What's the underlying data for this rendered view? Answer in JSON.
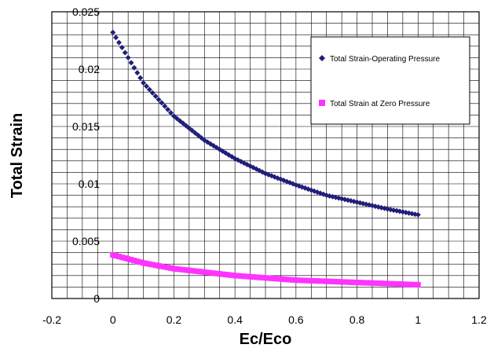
{
  "chart_data": {
    "type": "scatter",
    "xlabel": "Ec/Eco",
    "ylabel": "Total Strain",
    "xlim": [
      -0.2,
      1.2
    ],
    "ylim": [
      0,
      0.025
    ],
    "x_ticks": [
      "-0.2",
      "0",
      "0.2",
      "0.4",
      "0.6",
      "0.8",
      "1",
      "1.2"
    ],
    "y_ticks": [
      "0",
      "0.005",
      "0.01",
      "0.015",
      "0.02",
      "0.025"
    ],
    "grid": true,
    "legend_position": "top-right",
    "series": [
      {
        "name": "Total Strain-Operating Pressure",
        "color": "#1f1f7a",
        "marker": "diamond",
        "x": [
          0.0,
          0.1,
          0.2,
          0.3,
          0.4,
          0.5,
          0.6,
          0.7,
          0.8,
          0.9,
          1.0
        ],
        "y": [
          0.0232,
          0.0188,
          0.0159,
          0.0138,
          0.0122,
          0.0109,
          0.0099,
          0.009,
          0.0084,
          0.0078,
          0.0073
        ]
      },
      {
        "name": "Total Strain at Zero Pressure",
        "color": "#ff33ff",
        "marker": "square",
        "x": [
          0.0,
          0.1,
          0.2,
          0.3,
          0.4,
          0.5,
          0.6,
          0.7,
          0.8,
          0.9,
          1.0
        ],
        "y": [
          0.0038,
          0.0031,
          0.0026,
          0.0023,
          0.002,
          0.0018,
          0.0016,
          0.0015,
          0.0014,
          0.0013,
          0.0012
        ]
      }
    ]
  }
}
